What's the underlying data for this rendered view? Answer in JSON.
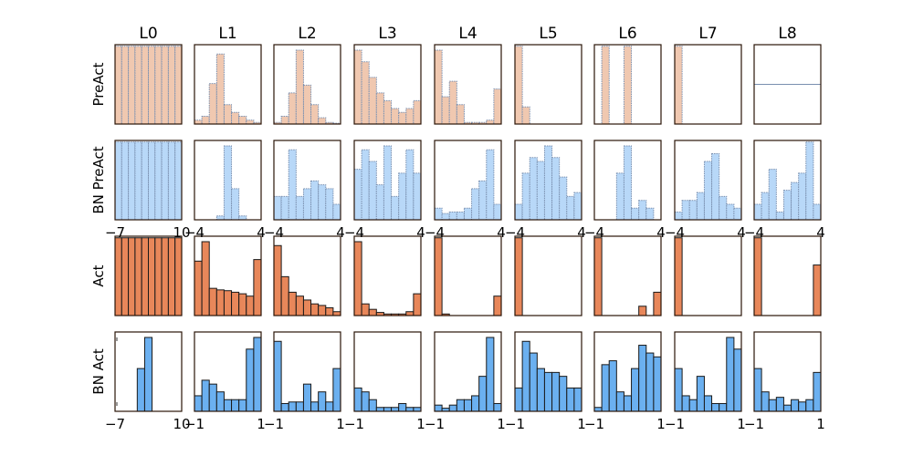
{
  "colors": {
    "PreAct": "#f0c8b0",
    "BN PreAct": "#b8d8f8",
    "Act": "#e8875a",
    "BN Act": "#6bb0f0",
    "frame": "#2a1408",
    "bar_edge_light": "#7a90b0",
    "bar_edge_dark": "#1a1a1a"
  },
  "chart_data": {
    "type": "bar",
    "layout": "small-multiples histogram grid",
    "columns": [
      "L0",
      "L1",
      "L2",
      "L3",
      "L4",
      "L5",
      "L6",
      "L7",
      "L8"
    ],
    "rows": [
      "PreAct",
      "BN PreAct",
      "Act",
      "BN Act"
    ],
    "x_tick_labels": {
      "BN PreAct": [
        [
          "−7",
          "10"
        ],
        [
          "−4",
          "4"
        ],
        [
          "−4",
          "4"
        ],
        [
          "−4",
          "4"
        ],
        [
          "−4",
          "4"
        ],
        [
          "−4",
          "4"
        ],
        [
          "−4",
          "4"
        ],
        [
          "−4",
          "4"
        ],
        [
          "−4",
          "4"
        ]
      ],
      "BN Act": [
        [
          "−7",
          "10"
        ],
        [
          "−1",
          "1"
        ],
        [
          "−1",
          "1"
        ],
        [
          "−1",
          "1"
        ],
        [
          "−1",
          "1"
        ],
        [
          "−1",
          "1"
        ],
        [
          "−1",
          "1"
        ],
        [
          "−1",
          "1"
        ],
        [
          "−1",
          "1"
        ]
      ]
    },
    "panels": {
      "PreAct": [
        {
          "layer": "L0",
          "bars": [
            1,
            1,
            1,
            1,
            1,
            1,
            1,
            1,
            1,
            1
          ]
        },
        {
          "layer": "L1",
          "bars": [
            0.05,
            0.1,
            0.52,
            0.9,
            0.25,
            0.15,
            0.1,
            0.05,
            0.02
          ]
        },
        {
          "layer": "L2",
          "bars": [
            0.02,
            0.1,
            0.4,
            0.95,
            0.5,
            0.25,
            0.08,
            0.02,
            0.01
          ]
        },
        {
          "layer": "L3",
          "bars": [
            0.95,
            0.8,
            0.6,
            0.4,
            0.3,
            0.2,
            0.15,
            0.2,
            0.3
          ]
        },
        {
          "layer": "L4",
          "bars": [
            0.95,
            0.35,
            0.55,
            0.25,
            0.02,
            0.02,
            0.02,
            0.05,
            0.45
          ]
        },
        {
          "layer": "L5",
          "bars": [
            1,
            0.22,
            0,
            0,
            0,
            0,
            0,
            0,
            0
          ]
        },
        {
          "layer": "L6",
          "bars": [
            0,
            1,
            0,
            0,
            1,
            0,
            0,
            0,
            0
          ]
        },
        {
          "layer": "L7",
          "bars": [
            1,
            0,
            0,
            0,
            0,
            0,
            0,
            0,
            0
          ]
        },
        {
          "layer": "L8",
          "bars": [],
          "hline": 0.5
        }
      ],
      "BN PreAct": [
        {
          "layer": "L0",
          "bars": [
            1,
            1,
            1,
            1,
            1,
            1,
            1,
            1,
            1,
            1
          ]
        },
        {
          "layer": "L1",
          "bars": [
            0,
            0,
            0,
            0.05,
            0.95,
            0.4,
            0.05,
            0,
            0
          ]
        },
        {
          "layer": "L2",
          "bars": [
            0.3,
            0.3,
            0.9,
            0.3,
            0.4,
            0.5,
            0.45,
            0.4,
            0.2
          ]
        },
        {
          "layer": "L3",
          "bars": [
            0.65,
            0.9,
            0.75,
            0.45,
            0.95,
            0.3,
            0.6,
            0.9,
            0.6
          ]
        },
        {
          "layer": "L4",
          "bars": [
            0.15,
            0.08,
            0.1,
            0.1,
            0.15,
            0.4,
            0.5,
            0.9,
            0.2
          ]
        },
        {
          "layer": "L5",
          "bars": [
            0.2,
            0.6,
            0.8,
            0.75,
            0.95,
            0.8,
            0.55,
            0.3,
            0.35
          ]
        },
        {
          "layer": "L6",
          "bars": [
            0,
            0,
            0,
            0.6,
            0.95,
            0.15,
            0.25,
            0.15,
            0
          ]
        },
        {
          "layer": "L7",
          "bars": [
            0.1,
            0.25,
            0.25,
            0.35,
            0.75,
            0.85,
            0.3,
            0.2,
            0.15
          ]
        },
        {
          "layer": "L8",
          "bars": [
            0.2,
            0.35,
            0.65,
            0.1,
            0.38,
            0.48,
            0.6,
            1.0,
            0.2
          ]
        }
      ],
      "Act": [
        {
          "layer": "L0",
          "bars": [
            1,
            1,
            1,
            1,
            1,
            1,
            1,
            1,
            1,
            1
          ]
        },
        {
          "layer": "L1",
          "bars": [
            0.7,
            0.95,
            0.35,
            0.33,
            0.32,
            0.3,
            0.28,
            0.25,
            0.72
          ]
        },
        {
          "layer": "L2",
          "bars": [
            0.9,
            0.5,
            0.3,
            0.25,
            0.2,
            0.15,
            0.13,
            0.1,
            0.05
          ]
        },
        {
          "layer": "L3",
          "bars": [
            0.95,
            0.15,
            0.08,
            0.04,
            0.02,
            0.02,
            0.02,
            0.05,
            0.28
          ]
        },
        {
          "layer": "L4",
          "bars": [
            1.0,
            0.02,
            0,
            0,
            0,
            0,
            0,
            0,
            0.25
          ]
        },
        {
          "layer": "L5",
          "bars": [
            1.0,
            0,
            0,
            0,
            0,
            0,
            0,
            0,
            0
          ]
        },
        {
          "layer": "L6",
          "bars": [
            1.0,
            0,
            0,
            0,
            0,
            0,
            0.12,
            0,
            0.3
          ]
        },
        {
          "layer": "L7",
          "bars": [
            1.0,
            0,
            0,
            0,
            0,
            0,
            0,
            0,
            0
          ]
        },
        {
          "layer": "L8",
          "bars": [
            1.0,
            0,
            0,
            0,
            0,
            0,
            0,
            0,
            0.65
          ]
        }
      ],
      "BN Act": [
        {
          "layer": "L0",
          "bars": [
            0,
            0,
            0,
            0.55,
            0.95,
            0,
            0,
            0,
            0
          ],
          "markers": [
            0.02,
            0.02
          ]
        },
        {
          "layer": "L1",
          "bars": [
            0.2,
            0.4,
            0.35,
            0.25,
            0.15,
            0.15,
            0.15,
            0.8,
            0.95
          ]
        },
        {
          "layer": "L2",
          "bars": [
            0.9,
            0.1,
            0.12,
            0.12,
            0.35,
            0.12,
            0.25,
            0.12,
            0.55
          ]
        },
        {
          "layer": "L3",
          "bars": [
            0.3,
            0.25,
            0.15,
            0.05,
            0.05,
            0.05,
            0.1,
            0.05,
            0.05
          ]
        },
        {
          "layer": "L4",
          "bars": [
            0.08,
            0.04,
            0.08,
            0.15,
            0.15,
            0.2,
            0.45,
            0.95,
            0.1
          ]
        },
        {
          "layer": "L5",
          "bars": [
            0.3,
            0.9,
            0.75,
            0.55,
            0.5,
            0.5,
            0.45,
            0.3,
            0.3
          ]
        },
        {
          "layer": "L6",
          "bars": [
            0.05,
            0.6,
            0.65,
            0.25,
            0.2,
            0.55,
            0.85,
            0.75,
            0.7
          ]
        },
        {
          "layer": "L7",
          "bars": [
            0.55,
            0.2,
            0.15,
            0.45,
            0.2,
            0.1,
            0.1,
            0.95,
            0.8
          ]
        },
        {
          "layer": "L8",
          "bars": [
            0.55,
            0.25,
            0.15,
            0.18,
            0.08,
            0.15,
            0.12,
            0.15,
            0.5
          ]
        }
      ]
    }
  }
}
